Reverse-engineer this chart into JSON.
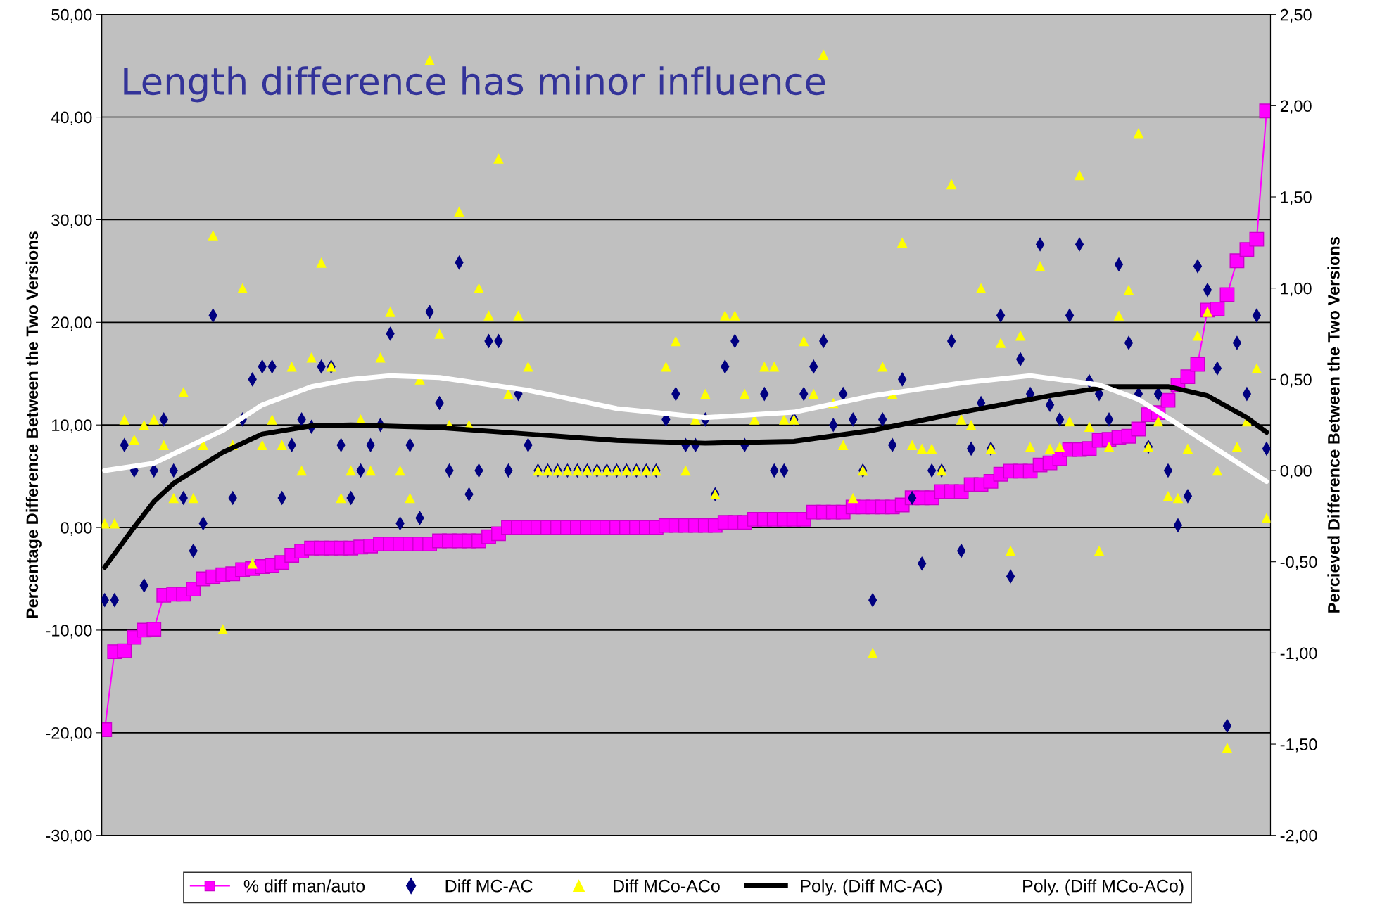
{
  "chart_data": {
    "type": "line",
    "title": "Length difference has minor influence",
    "ylabel": "Percentage Difference Between the Two Versions",
    "y2label": "Percieved Difference Between the Two Versions",
    "categories": [
      null,
      null,
      null,
      null,
      null,
      null,
      null,
      null,
      null,
      null,
      null,
      null,
      null,
      null,
      null,
      null,
      null,
      null,
      null,
      null,
      null,
      null,
      null,
      null,
      null,
      null,
      null,
      null,
      null,
      null,
      null,
      null,
      null,
      null,
      null,
      null,
      null,
      null,
      null,
      null,
      null,
      null,
      null,
      null,
      null,
      null,
      null,
      null,
      null,
      null,
      null,
      null,
      null,
      null,
      null,
      null,
      null,
      null,
      null,
      null,
      null,
      null,
      null,
      null,
      null,
      null,
      null,
      null,
      null,
      null,
      null,
      null,
      null,
      null,
      null,
      null,
      null,
      null,
      null,
      null,
      null,
      null,
      null,
      null,
      null,
      null,
      null,
      null,
      null,
      null,
      null,
      null,
      null,
      null,
      null,
      null,
      null,
      null,
      null,
      null,
      null,
      null,
      null,
      null,
      null,
      null,
      null,
      null,
      null,
      null,
      null,
      null,
      null,
      null,
      null,
      null,
      null,
      null,
      null
    ],
    "ylim": [
      -30,
      50
    ],
    "yticks": [
      {
        "value": -30,
        "label": "-30,00"
      },
      {
        "value": -20,
        "label": "-20,00"
      },
      {
        "value": -10,
        "label": "-10,00"
      },
      {
        "value": 0,
        "label": "0,00"
      },
      {
        "value": 10,
        "label": "10,00"
      },
      {
        "value": 20,
        "label": "20,00"
      },
      {
        "value": 30,
        "label": "30,00"
      },
      {
        "value": 40,
        "label": "40,00"
      },
      {
        "value": 50,
        "label": "50,00"
      }
    ],
    "y2lim": [
      -2,
      2.5
    ],
    "y2ticks": [
      {
        "value": -2,
        "label": "-2,00"
      },
      {
        "value": -1.5,
        "label": "-1,50"
      },
      {
        "value": -1,
        "label": "-1,00"
      },
      {
        "value": -0.5,
        "label": "-0,50"
      },
      {
        "value": 0,
        "label": "0,00"
      },
      {
        "value": 0.5,
        "label": "0,50"
      },
      {
        "value": 1,
        "label": "1,00"
      },
      {
        "value": 1.5,
        "label": "1,50"
      },
      {
        "value": 2,
        "label": "2,00"
      },
      {
        "value": 2.5,
        "label": "2,50"
      }
    ],
    "grid": "y",
    "legend": "bottom",
    "tick_labels": "y",
    "series": [
      {
        "name": "% diff man/auto",
        "marker": "square",
        "color": "#ff00ff",
        "values": [
          -19.7,
          -12.1,
          -12.0,
          -10.7,
          -10.0,
          -9.9,
          -6.6,
          -6.5,
          -6.5,
          -6.0,
          -5.0,
          -4.8,
          -4.6,
          -4.5,
          -4.1,
          -4.0,
          -3.8,
          -3.7,
          -3.4,
          -2.7,
          -2.3,
          -2.0,
          -2.0,
          -2.0,
          -2.0,
          -2.0,
          -1.9,
          -1.8,
          -1.6,
          -1.6,
          -1.6,
          -1.6,
          -1.6,
          -1.6,
          -1.3,
          -1.3,
          -1.3,
          -1.3,
          -1.3,
          -0.9,
          -0.6,
          0,
          0,
          0,
          0,
          0,
          0,
          0,
          0,
          0,
          0,
          0,
          0,
          0,
          0,
          0,
          0,
          0.2,
          0.2,
          0.2,
          0.2,
          0.2,
          0.2,
          0.5,
          0.5,
          0.5,
          0.8,
          0.8,
          0.8,
          0.8,
          0.8,
          0.8,
          1.5,
          1.5,
          1.5,
          1.5,
          2.0,
          2.0,
          2.0,
          2.0,
          2.0,
          2.2,
          2.9,
          2.9,
          2.9,
          3.5,
          3.5,
          3.5,
          4.2,
          4.2,
          4.5,
          5.2,
          5.5,
          5.5,
          5.5,
          6.1,
          6.3,
          6.7,
          7.6,
          7.6,
          7.7,
          8.5,
          8.6,
          8.8,
          8.9,
          9.6,
          11.0,
          11.2,
          12.4,
          13.9,
          14.7,
          15.9,
          21.2,
          21.3,
          22.7,
          26.0,
          27.1,
          28.1,
          40.6
        ]
      },
      {
        "name": "Diff MC-AC",
        "type": "scatter",
        "marker": "diamond",
        "axis": "y2",
        "color": "#000080",
        "values": [
          -0.71,
          -0.71,
          0.14,
          0,
          -0.63,
          0,
          0.28,
          0,
          -0.15,
          -0.44,
          -0.29,
          0.85,
          null,
          -0.15,
          0.28,
          0.5,
          0.57,
          0.57,
          -0.15,
          0.14,
          0.28,
          0.24,
          0.57,
          0.57,
          0.14,
          -0.15,
          0,
          0.14,
          0.25,
          0.75,
          -0.29,
          0.14,
          -0.26,
          0.87,
          0.37,
          0,
          1.14,
          -0.13,
          0,
          0.71,
          0.71,
          0,
          0.42,
          0.14,
          0,
          0,
          0,
          0,
          0,
          0,
          0,
          0,
          0,
          0,
          0,
          0,
          0,
          0.28,
          0.42,
          0.14,
          0.14,
          0.28,
          -0.13,
          0.57,
          0.71,
          0.14,
          null,
          0.42,
          0,
          0,
          0.28,
          0.42,
          0.57,
          0.71,
          0.25,
          0.42,
          0.28,
          0,
          -0.71,
          0.28,
          0.14,
          0.5,
          -0.15,
          -0.51,
          0,
          0,
          0.71,
          -0.44,
          0.12,
          0.37,
          0.12,
          0.85,
          -0.58,
          0.61,
          0.42,
          1.24,
          0.36,
          0.28,
          0.85,
          1.24,
          0.49,
          0.42,
          0.28,
          1.13,
          0.7,
          0.42,
          0.13,
          0.42,
          0,
          -0.3,
          -0.14,
          1.12,
          0.99,
          0.56,
          -1.4,
          0.7,
          0.42,
          0.85,
          0.12
        ]
      },
      {
        "name": "Diff MCo-ACo",
        "type": "scatter",
        "marker": "triangle",
        "axis": "y2",
        "color": "#ffff00",
        "values": [
          -0.29,
          -0.29,
          0.28,
          0.17,
          0.25,
          0.28,
          0.14,
          -0.15,
          0.43,
          -0.15,
          0.14,
          1.29,
          -0.87,
          0.14,
          1.0,
          -0.51,
          0.14,
          0.28,
          0.14,
          0.57,
          0,
          0.62,
          1.14,
          0.57,
          -0.15,
          0,
          0.28,
          0,
          0.62,
          0.87,
          0,
          -0.15,
          0.5,
          2.25,
          0.75,
          0.25,
          1.42,
          0.25,
          1.0,
          0.85,
          1.71,
          0.42,
          0.85,
          0.57,
          0,
          0,
          0,
          0,
          0,
          0,
          0,
          0,
          0,
          0,
          0,
          0,
          0,
          0.57,
          0.71,
          0,
          0.28,
          0.42,
          -0.13,
          0.85,
          0.85,
          0.42,
          0.28,
          0.57,
          0.57,
          0.28,
          0.28,
          0.71,
          0.42,
          2.28,
          0.37,
          0.14,
          -0.15,
          0,
          -1.0,
          0.57,
          0.42,
          1.25,
          0.14,
          0.12,
          0.12,
          0,
          1.57,
          0.28,
          0.25,
          1.0,
          0.12,
          0.7,
          -0.44,
          0.74,
          0.13,
          1.12,
          0.12,
          0.13,
          0.27,
          1.62,
          0.24,
          -0.44,
          0.13,
          0.85,
          0.99,
          1.85,
          0.13,
          0.27,
          -0.14,
          -0.15,
          0.12,
          0.74,
          0.87,
          0,
          -1.52,
          0.13,
          0.27,
          0.56,
          -0.26
        ]
      },
      {
        "name": "Poly. (Diff MC-AC)",
        "axis": "y2",
        "color": "#000000",
        "values": [
          -0.53,
          null,
          null,
          -0.31,
          null,
          -0.17,
          null,
          -0.07,
          null,
          null,
          null,
          null,
          0.1,
          null,
          null,
          null,
          0.2,
          null,
          null,
          null,
          null,
          0.245,
          null,
          null,
          null,
          0.25,
          null,
          null,
          null,
          null,
          null,
          null,
          null,
          null,
          0.235,
          null,
          null,
          null,
          null,
          null,
          null,
          null,
          null,
          0.2,
          null,
          null,
          null,
          null,
          null,
          null,
          null,
          null,
          0.165,
          null,
          null,
          null,
          null,
          null,
          null,
          null,
          null,
          0.15,
          null,
          null,
          null,
          null,
          null,
          null,
          null,
          null,
          0.16,
          null,
          null,
          null,
          null,
          null,
          null,
          null,
          0.22,
          null,
          null,
          null,
          null,
          null,
          null,
          null,
          null,
          0.32,
          null,
          null,
          null,
          null,
          null,
          null,
          null,
          null,
          0.41,
          null,
          null,
          null,
          null,
          null,
          0.46,
          null,
          null,
          null,
          null,
          null,
          0.46,
          null,
          null,
          null,
          0.41,
          null,
          null,
          null,
          0.29,
          null,
          0.21
        ]
      },
      {
        "name": "Poly. (Diff MCo-ACo)",
        "axis": "y2",
        "color": "#ffffff",
        "values": [
          0,
          null,
          null,
          null,
          null,
          0.04,
          null,
          null,
          null,
          null,
          null,
          null,
          0.22,
          null,
          null,
          null,
          0.36,
          null,
          null,
          null,
          null,
          0.46,
          null,
          null,
          null,
          0.5,
          null,
          null,
          null,
          0.52,
          null,
          null,
          null,
          null,
          0.51,
          null,
          null,
          null,
          null,
          null,
          null,
          null,
          null,
          0.44,
          null,
          null,
          null,
          null,
          null,
          null,
          null,
          null,
          0.34,
          null,
          null,
          null,
          null,
          null,
          null,
          null,
          null,
          0.29,
          null,
          null,
          null,
          null,
          null,
          null,
          null,
          null,
          0.32,
          null,
          null,
          null,
          null,
          null,
          null,
          null,
          0.41,
          null,
          null,
          null,
          null,
          null,
          null,
          null,
          null,
          0.48,
          null,
          null,
          null,
          null,
          null,
          null,
          0.52,
          null,
          null,
          null,
          null,
          null,
          null,
          0.47,
          null,
          null,
          null,
          0.39,
          null,
          null,
          null,
          null,
          0.22,
          null,
          null,
          null,
          0.08,
          null,
          null,
          null,
          -0.06
        ]
      }
    ]
  }
}
